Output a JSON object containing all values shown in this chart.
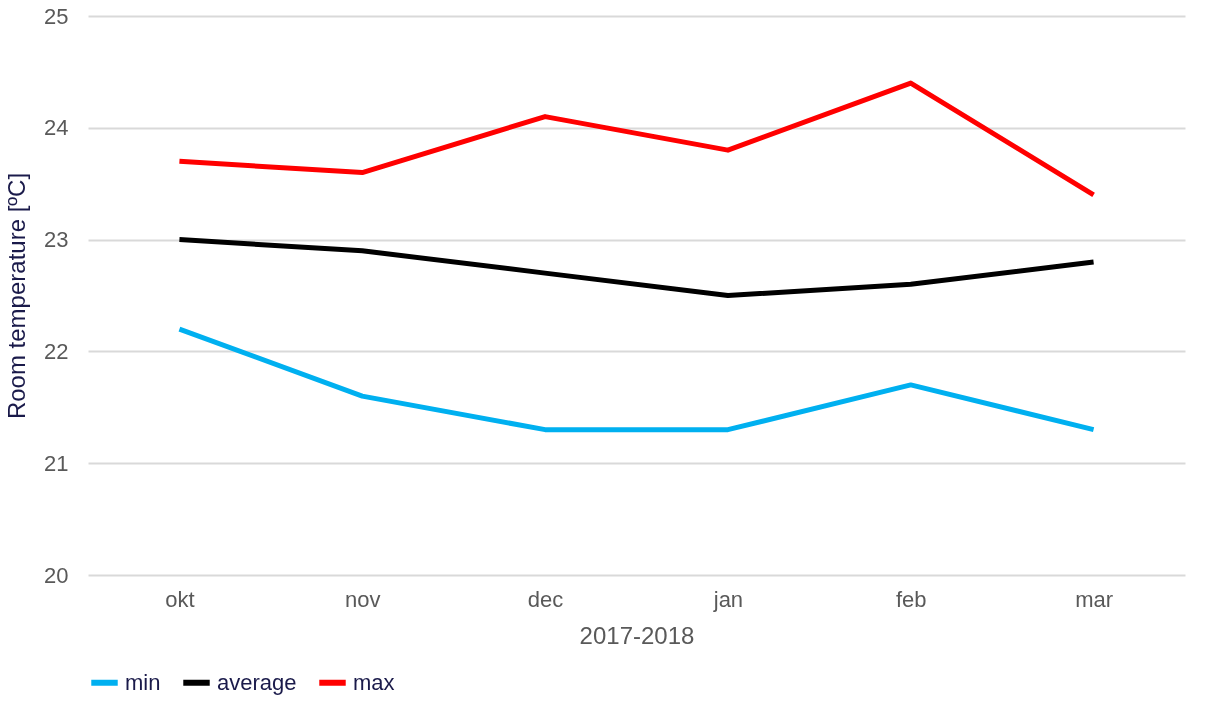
{
  "chart_data": {
    "type": "line",
    "xlabel": "2017-2018",
    "ylabel": "Room temperature [ºC]",
    "categories": [
      "okt",
      "nov",
      "dec",
      "jan",
      "feb",
      "mar"
    ],
    "series": [
      {
        "name": "min",
        "color": "#00b0f0",
        "values": [
          22.2,
          21.6,
          21.3,
          21.3,
          21.7,
          21.3
        ]
      },
      {
        "name": "average",
        "color": "#000000",
        "values": [
          23.0,
          22.9,
          22.7,
          22.5,
          22.6,
          22.8
        ]
      },
      {
        "name": "max",
        "color": "#ff0000",
        "values": [
          23.7,
          23.6,
          24.1,
          23.8,
          24.4,
          23.4
        ]
      }
    ],
    "ylim": [
      20,
      25
    ],
    "yticks": [
      20,
      21,
      22,
      23,
      24,
      25
    ],
    "grid": "y",
    "legend": "bottom",
    "marker": "none",
    "line_style": "solid"
  }
}
